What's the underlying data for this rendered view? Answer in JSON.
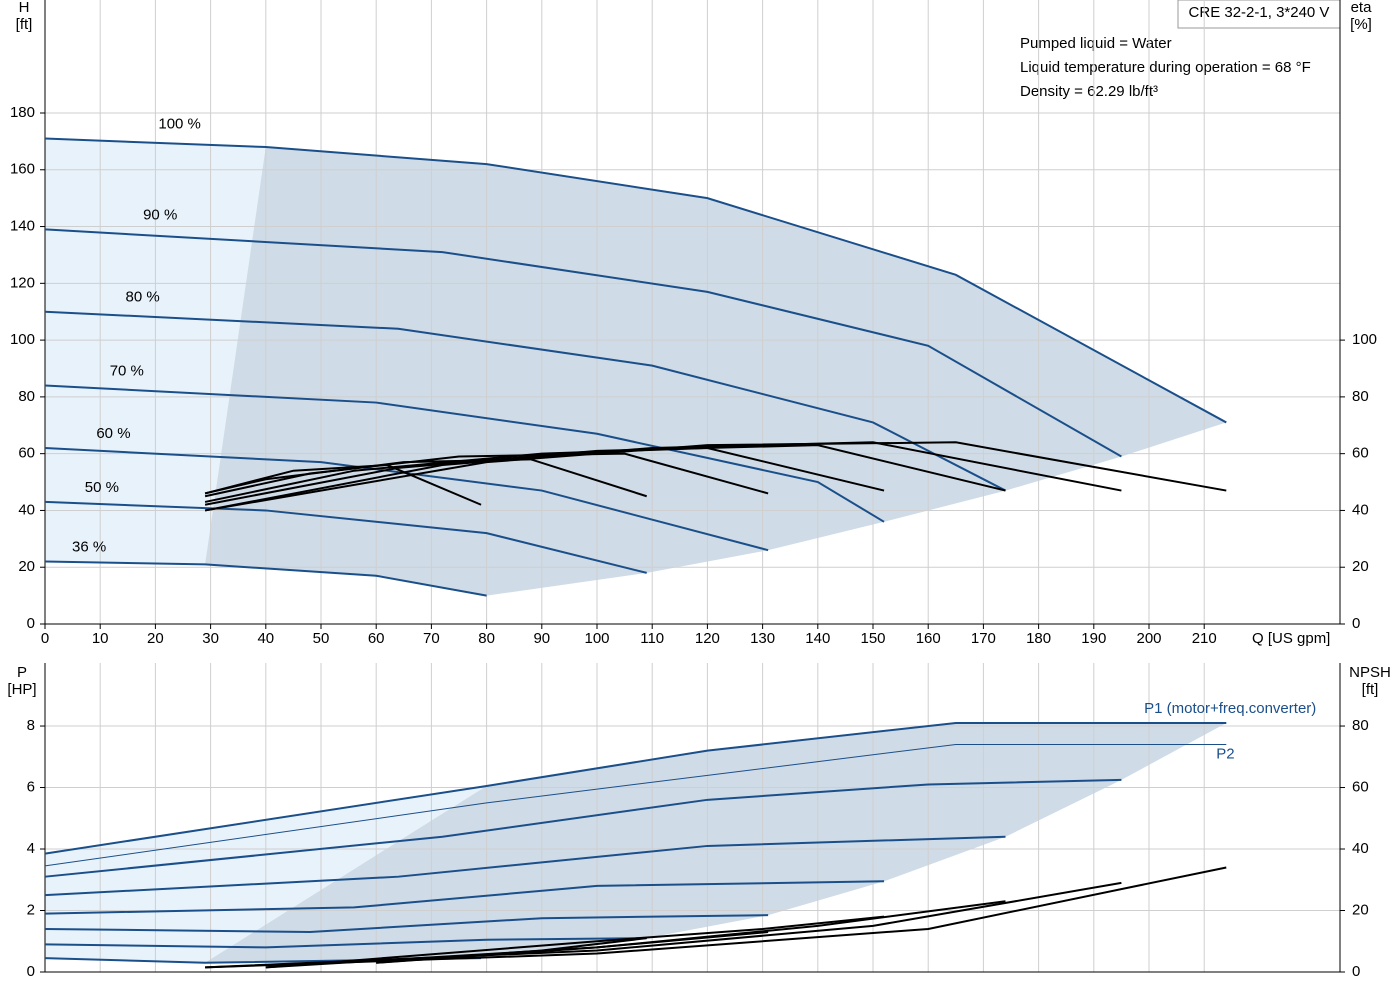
{
  "chart_data": [
    {
      "type": "line",
      "model": "CRE 32-2-1, 3*240 V",
      "annotations": [
        "Pumped liquid = Water",
        "Liquid temperature during operation = 68 °F",
        "Density = 62.29 lb/ft³"
      ],
      "ylabel": "H",
      "yunit": "[ft]",
      "y2label": "eta",
      "y2unit": "[%]",
      "xlabel": "Q [US gpm]",
      "xlim": [
        0,
        234.6
      ],
      "xticks": [
        0,
        10,
        20,
        30,
        40,
        50,
        60,
        70,
        80,
        90,
        100,
        110,
        120,
        130,
        140,
        150,
        160,
        170,
        180,
        190,
        200,
        210
      ],
      "ylim": [
        0,
        219.8
      ],
      "yticks": [
        0,
        20,
        40,
        60,
        80,
        100,
        120,
        140,
        160,
        180
      ],
      "y2lim": [
        0,
        219.8
      ],
      "y2ticks": [
        0,
        20,
        40,
        60,
        80,
        100
      ],
      "grid": true,
      "series": [
        {
          "name": "100 %",
          "color": "#1a4f8a",
          "x": [
            0,
            40,
            80,
            120,
            165,
            214
          ],
          "values": [
            171,
            168,
            162,
            150,
            123,
            71
          ]
        },
        {
          "name": "90 %",
          "color": "#1a4f8a",
          "x": [
            0,
            72,
            120,
            160,
            195
          ],
          "values": [
            139,
            131,
            117,
            98,
            59
          ]
        },
        {
          "name": "80 %",
          "color": "#1a4f8a",
          "x": [
            0,
            64,
            110,
            150,
            174
          ],
          "values": [
            110,
            104,
            91,
            71,
            47
          ]
        },
        {
          "name": "70 %",
          "color": "#1a4f8a",
          "x": [
            0,
            60,
            100,
            140,
            152
          ],
          "values": [
            84,
            78,
            67,
            50,
            36
          ]
        },
        {
          "name": "60 %",
          "color": "#1a4f8a",
          "x": [
            0,
            50,
            90,
            131
          ],
          "values": [
            62,
            57,
            47,
            26
          ]
        },
        {
          "name": "50 %",
          "color": "#1a4f8a",
          "x": [
            0,
            40,
            80,
            109
          ],
          "values": [
            43,
            40,
            32,
            18
          ]
        },
        {
          "name": "36 %",
          "color": "#1a4f8a",
          "x": [
            0,
            29,
            60,
            80
          ],
          "values": [
            22,
            21,
            17,
            10
          ]
        },
        {
          "axis": "y2",
          "color": "#000000",
          "x": [
            29,
            80,
            120,
            165,
            214
          ],
          "values": [
            40,
            57,
            63,
            64,
            47
          ]
        },
        {
          "axis": "y2",
          "color": "#000000",
          "x": [
            29,
            72,
            110,
            150,
            195
          ],
          "values": [
            40,
            56,
            62,
            64,
            47
          ]
        },
        {
          "axis": "y2",
          "color": "#000000",
          "x": [
            29,
            64,
            100,
            140,
            174
          ],
          "values": [
            42,
            55,
            61,
            63,
            47
          ]
        },
        {
          "axis": "y2",
          "color": "#000000",
          "x": [
            29,
            56,
            90,
            120,
            152
          ],
          "values": [
            43,
            54,
            60,
            62,
            47
          ]
        },
        {
          "axis": "y2",
          "color": "#000000",
          "x": [
            29,
            48,
            75,
            105,
            131
          ],
          "values": [
            45,
            53,
            59,
            60,
            46
          ]
        },
        {
          "axis": "y2",
          "color": "#000000",
          "x": [
            29,
            40,
            65,
            88,
            109
          ],
          "values": [
            46,
            51,
            57,
            58,
            45
          ]
        },
        {
          "axis": "y2",
          "color": "#000000",
          "x": [
            29,
            45,
            62,
            79
          ],
          "values": [
            46,
            54,
            56,
            42
          ]
        }
      ]
    },
    {
      "type": "line",
      "ylabel": "P",
      "yunit": "[HP]",
      "y2label": "NPSH",
      "y2unit": "[ft]",
      "xlim": [
        0,
        234.6
      ],
      "ylim": [
        0,
        10.05
      ],
      "yticks": [
        0,
        2,
        4,
        6,
        8
      ],
      "y2lim": [
        0,
        100.5
      ],
      "y2ticks": [
        0,
        20,
        40,
        60,
        80
      ],
      "grid": true,
      "series": [
        {
          "name": "P1 (motor+freq.converter)",
          "color": "#1a4f8a",
          "x": [
            0,
            80,
            120,
            165,
            214
          ],
          "values": [
            3.85,
            6.05,
            7.2,
            8.1,
            8.1
          ]
        },
        {
          "color": "#1a4f8a",
          "x": [
            0,
            72,
            120,
            160,
            195
          ],
          "values": [
            3.1,
            4.4,
            5.6,
            6.1,
            6.25
          ]
        },
        {
          "color": "#1a4f8a",
          "x": [
            0,
            64,
            120,
            174
          ],
          "values": [
            2.5,
            3.1,
            4.1,
            4.4
          ]
        },
        {
          "color": "#1a4f8a",
          "x": [
            0,
            56,
            100,
            152
          ],
          "values": [
            1.9,
            2.1,
            2.8,
            2.95
          ]
        },
        {
          "color": "#1a4f8a",
          "x": [
            0,
            48,
            90,
            131
          ],
          "values": [
            1.4,
            1.3,
            1.75,
            1.85
          ]
        },
        {
          "color": "#1a4f8a",
          "x": [
            0,
            40,
            80,
            109
          ],
          "values": [
            0.9,
            0.8,
            1.05,
            1.1
          ]
        },
        {
          "color": "#1a4f8a",
          "x": [
            0,
            29,
            79
          ],
          "values": [
            0.45,
            0.3,
            0.45
          ]
        },
        {
          "name": "P2",
          "color": "#1a4f8a",
          "thin": true,
          "x": [
            0,
            80,
            165,
            214
          ],
          "values": [
            3.45,
            5.5,
            7.4,
            7.4
          ]
        },
        {
          "axis": "y2",
          "color": "#000000",
          "x": [
            29,
            100,
            160,
            214
          ],
          "values": [
            1.5,
            6,
            14,
            34
          ]
        },
        {
          "axis": "y2",
          "color": "#000000",
          "x": [
            29,
            100,
            150,
            195
          ],
          "values": [
            1.5,
            7,
            15,
            29
          ]
        },
        {
          "axis": "y2",
          "color": "#000000",
          "x": [
            40,
            100,
            140,
            174
          ],
          "values": [
            1.5,
            8,
            15,
            23
          ]
        },
        {
          "axis": "y2",
          "color": "#000000",
          "x": [
            40,
            100,
            130,
            152
          ],
          "values": [
            1.5,
            10,
            14,
            18
          ]
        },
        {
          "axis": "y2",
          "color": "#000000",
          "x": [
            60,
            100,
            131
          ],
          "values": [
            3,
            8,
            13
          ]
        },
        {
          "axis": "y2",
          "color": "#000000",
          "x": [
            60,
            90,
            109
          ],
          "values": [
            3,
            7,
            11
          ]
        }
      ]
    }
  ]
}
